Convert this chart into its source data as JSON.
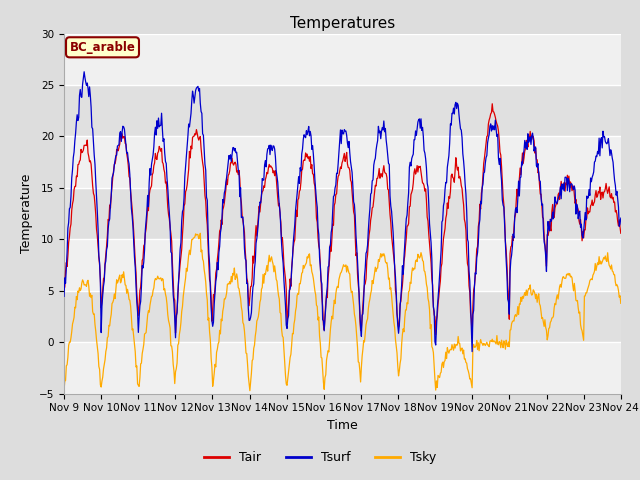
{
  "title": "Temperatures",
  "xlabel": "Time",
  "ylabel": "Temperature",
  "ylim": [
    -5,
    30
  ],
  "yticks": [
    -5,
    0,
    5,
    10,
    15,
    20,
    25,
    30
  ],
  "xticklabels": [
    "Nov 9",
    "Nov 10",
    "Nov 11",
    "Nov 12",
    "Nov 13",
    "Nov 14",
    "Nov 15",
    "Nov 16",
    "Nov 17",
    "Nov 18",
    "Nov 19",
    "Nov 20",
    "Nov 21",
    "Nov 22",
    "Nov 23",
    "Nov 24"
  ],
  "legend_labels": [
    "Tair",
    "Tsurf",
    "Tsky"
  ],
  "tair_color": "#dd0000",
  "tsurf_color": "#0000cc",
  "tsky_color": "#ffaa00",
  "background_color": "#dddddd",
  "plot_bg_light": "#f0f0f0",
  "plot_bg_dark": "#e0e0e0",
  "grid_color": "#ffffff",
  "site_label": "BC_arable",
  "site_label_color": "#8b0000",
  "site_label_bg": "#ffffcc",
  "title_fontsize": 11,
  "axis_label_fontsize": 9,
  "tick_fontsize": 7.5,
  "legend_fontsize": 9,
  "n_days": 15
}
